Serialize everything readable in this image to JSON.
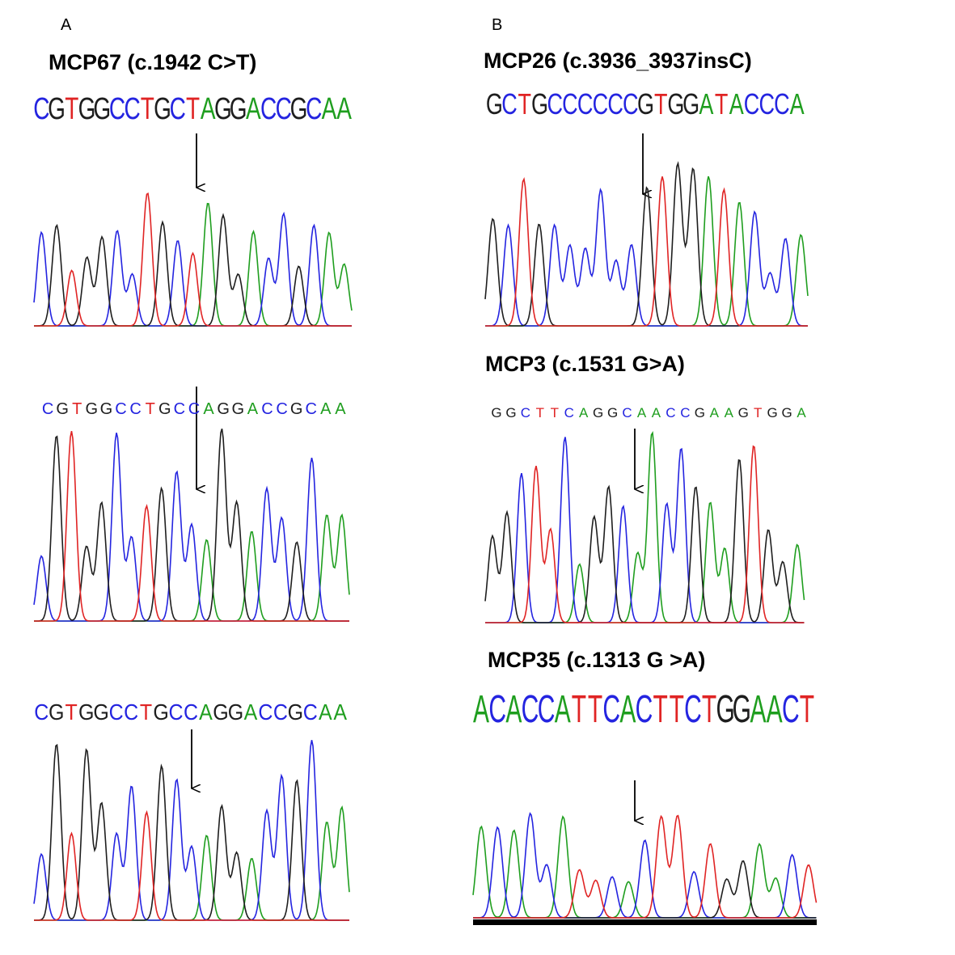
{
  "panels": [
    {
      "label": "A",
      "title": "MCP67 (c.1942 C>T)",
      "tracks": [
        {
          "sequence": "CGTGGCCTGCTAGGACCGCAA"
        },
        {
          "sequence": "CGTGGCCTGCCAGGACCGCAA"
        },
        {
          "sequence": "CGTGGCCTGCCAGGACCGCAA"
        }
      ]
    },
    {
      "label": "B",
      "tracks": [
        {
          "title": "MCP26 (c.3936_3937insC)",
          "sequence": "GCTGCCCCCCGTGGATACCCA"
        },
        {
          "title": "MCP3 (c.1531 G>A)",
          "sequence": "GGCTTCAGGCAACCGAAGTGGA"
        },
        {
          "title": "MCP35 (c.1313 G >A)",
          "sequence": "ACACCATTCACTTCTGGAACT"
        }
      ]
    }
  ]
}
